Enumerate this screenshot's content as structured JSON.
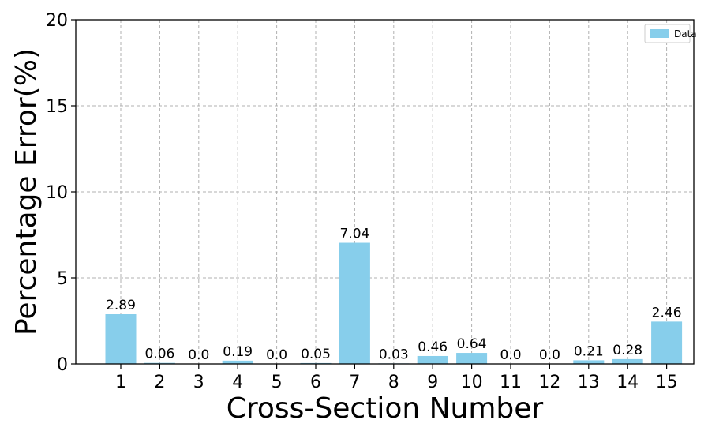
{
  "chart_data": {
    "type": "bar",
    "title": "",
    "xlabel": "Cross-Section Number",
    "ylabel": "Percentage Error(%)",
    "categories": [
      "1",
      "2",
      "3",
      "4",
      "5",
      "6",
      "7",
      "8",
      "9",
      "10",
      "11",
      "12",
      "13",
      "14",
      "15"
    ],
    "series": [
      {
        "name": "Data",
        "values": [
          2.89,
          0.06,
          0.0,
          0.19,
          0.0,
          0.05,
          7.04,
          0.03,
          0.46,
          0.64,
          0.0,
          0.0,
          0.21,
          0.28,
          2.46
        ],
        "labels": [
          "2.89",
          "0.06",
          "0.0",
          "0.19",
          "0.0",
          "0.05",
          "7.04",
          "0.03",
          "0.46",
          "0.64",
          "0.0",
          "0.0",
          "0.21",
          "0.28",
          "2.46"
        ],
        "color": "#87ceeb"
      }
    ],
    "ylim": [
      0,
      20
    ],
    "yticks": [
      "0",
      "5",
      "10",
      "15",
      "20"
    ],
    "grid": true,
    "legend": "top-right"
  }
}
